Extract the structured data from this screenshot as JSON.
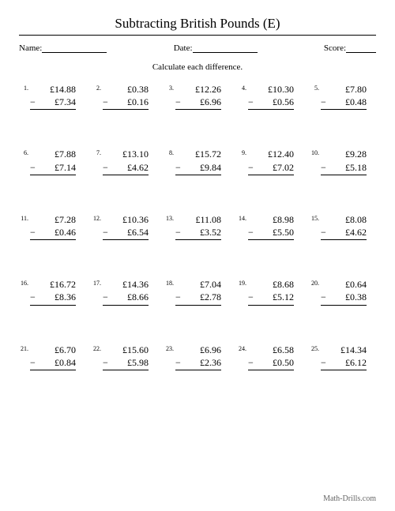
{
  "title": "Subtracting British Pounds (E)",
  "meta": {
    "name_label": "Name:",
    "date_label": "Date:",
    "score_label": "Score:"
  },
  "instruction": "Calculate each difference.",
  "currency_symbol": "£",
  "operator": "−",
  "footer": "Math-Drills.com",
  "problems": [
    {
      "n": "1.",
      "a": "14.88",
      "b": "7.34"
    },
    {
      "n": "2.",
      "a": "0.38",
      "b": "0.16"
    },
    {
      "n": "3.",
      "a": "12.26",
      "b": "6.96"
    },
    {
      "n": "4.",
      "a": "10.30",
      "b": "0.56"
    },
    {
      "n": "5.",
      "a": "7.80",
      "b": "0.48"
    },
    {
      "n": "6.",
      "a": "7.88",
      "b": "7.14"
    },
    {
      "n": "7.",
      "a": "13.10",
      "b": "4.62"
    },
    {
      "n": "8.",
      "a": "15.72",
      "b": "9.84"
    },
    {
      "n": "9.",
      "a": "12.40",
      "b": "7.02"
    },
    {
      "n": "10.",
      "a": "9.28",
      "b": "5.18"
    },
    {
      "n": "11.",
      "a": "7.28",
      "b": "0.46"
    },
    {
      "n": "12.",
      "a": "10.36",
      "b": "6.54"
    },
    {
      "n": "13.",
      "a": "11.08",
      "b": "3.52"
    },
    {
      "n": "14.",
      "a": "8.98",
      "b": "5.50"
    },
    {
      "n": "15.",
      "a": "8.08",
      "b": "4.62"
    },
    {
      "n": "16.",
      "a": "16.72",
      "b": "8.36"
    },
    {
      "n": "17.",
      "a": "14.36",
      "b": "8.66"
    },
    {
      "n": "18.",
      "a": "7.04",
      "b": "2.78"
    },
    {
      "n": "19.",
      "a": "8.68",
      "b": "5.12"
    },
    {
      "n": "20.",
      "a": "0.64",
      "b": "0.38"
    },
    {
      "n": "21.",
      "a": "6.70",
      "b": "0.84"
    },
    {
      "n": "22.",
      "a": "15.60",
      "b": "5.98"
    },
    {
      "n": "23.",
      "a": "6.96",
      "b": "2.36"
    },
    {
      "n": "24.",
      "a": "6.58",
      "b": "0.50"
    },
    {
      "n": "25.",
      "a": "14.34",
      "b": "6.12"
    }
  ],
  "style": {
    "page_bg": "#ffffff",
    "text_color": "#000000",
    "footer_color": "#666666",
    "title_fontsize": 17,
    "body_fontsize": 12,
    "problem_num_fontsize": 8,
    "meta_fontsize": 11,
    "columns": 5,
    "rows": 5
  }
}
